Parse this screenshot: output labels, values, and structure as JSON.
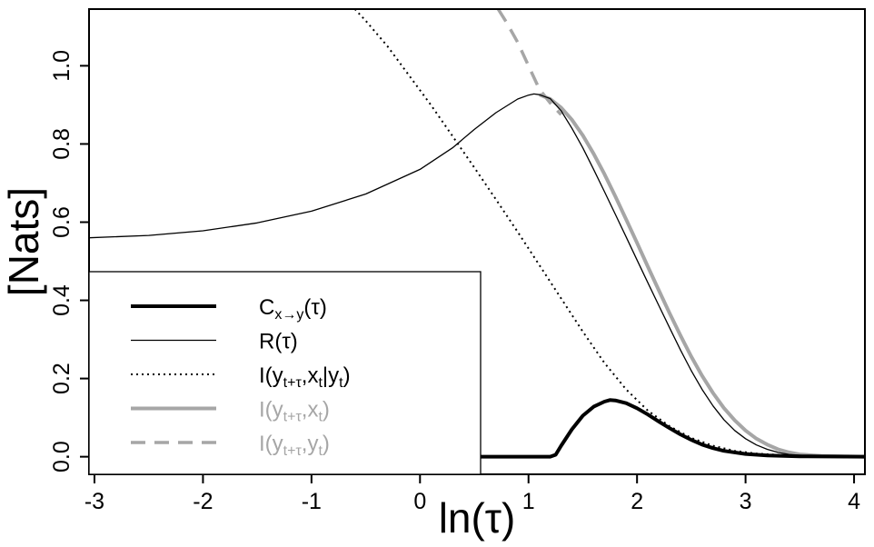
{
  "chart_data": {
    "type": "line",
    "xlabel": "ln(τ)",
    "ylabel": "[Nats]",
    "xlim": [
      -3.05,
      4.1
    ],
    "ylim": [
      -0.045,
      1.145
    ],
    "xticks": [
      {
        "value": -3,
        "label": "-3"
      },
      {
        "value": -2,
        "label": "-2"
      },
      {
        "value": -1,
        "label": "-1"
      },
      {
        "value": 0,
        "label": "0"
      },
      {
        "value": 1,
        "label": "1"
      },
      {
        "value": 2,
        "label": "2"
      },
      {
        "value": 3,
        "label": "3"
      },
      {
        "value": 4,
        "label": "4"
      }
    ],
    "yticks": [
      {
        "value": 0.0,
        "label": "0.0"
      },
      {
        "value": 0.2,
        "label": "0.2"
      },
      {
        "value": 0.4,
        "label": "0.4"
      },
      {
        "value": 0.6,
        "label": "0.6"
      },
      {
        "value": 0.8,
        "label": "0.8"
      },
      {
        "value": 1.0,
        "label": "1.0"
      }
    ],
    "grid": false,
    "legend_position": "bottom-left",
    "series": [
      {
        "name": "C",
        "color": "#000000",
        "style": "solid-thick",
        "points": [
          [
            -3.05,
            0
          ],
          [
            1.2,
            0
          ],
          [
            1.25,
            0.005
          ],
          [
            1.3,
            0.028
          ],
          [
            1.4,
            0.07
          ],
          [
            1.5,
            0.105
          ],
          [
            1.6,
            0.128
          ],
          [
            1.7,
            0.141
          ],
          [
            1.75,
            0.145
          ],
          [
            1.8,
            0.144
          ],
          [
            1.9,
            0.137
          ],
          [
            2.0,
            0.124
          ],
          [
            2.1,
            0.108
          ],
          [
            2.2,
            0.09
          ],
          [
            2.3,
            0.073
          ],
          [
            2.4,
            0.057
          ],
          [
            2.5,
            0.043
          ],
          [
            2.6,
            0.031
          ],
          [
            2.7,
            0.022
          ],
          [
            2.8,
            0.015
          ],
          [
            3.0,
            0.007
          ],
          [
            3.2,
            0.003
          ],
          [
            3.5,
            0.001
          ],
          [
            4.1,
            0
          ]
        ]
      },
      {
        "name": "R",
        "color": "#000000",
        "style": "solid-thin",
        "points": [
          [
            -3.05,
            0.56
          ],
          [
            -2.5,
            0.566
          ],
          [
            -2,
            0.578
          ],
          [
            -1.5,
            0.598
          ],
          [
            -1,
            0.628
          ],
          [
            -0.5,
            0.672
          ],
          [
            0,
            0.735
          ],
          [
            0.3,
            0.79
          ],
          [
            0.5,
            0.837
          ],
          [
            0.7,
            0.88
          ],
          [
            0.9,
            0.915
          ],
          [
            1.0,
            0.925
          ],
          [
            1.05,
            0.928
          ],
          [
            1.1,
            0.926
          ],
          [
            1.2,
            0.916
          ],
          [
            1.3,
            0.885
          ],
          [
            1.4,
            0.84
          ],
          [
            1.5,
            0.79
          ],
          [
            1.6,
            0.735
          ],
          [
            1.7,
            0.678
          ],
          [
            1.8,
            0.62
          ],
          [
            1.9,
            0.562
          ],
          [
            2.0,
            0.503
          ],
          [
            2.1,
            0.445
          ],
          [
            2.2,
            0.387
          ],
          [
            2.3,
            0.33
          ],
          [
            2.4,
            0.273
          ],
          [
            2.5,
            0.22
          ],
          [
            2.6,
            0.172
          ],
          [
            2.7,
            0.13
          ],
          [
            2.8,
            0.095
          ],
          [
            2.9,
            0.067
          ],
          [
            3.0,
            0.046
          ],
          [
            3.1,
            0.03
          ],
          [
            3.2,
            0.019
          ],
          [
            3.3,
            0.011
          ],
          [
            3.4,
            0.006
          ],
          [
            3.6,
            0.002
          ],
          [
            4.1,
            0
          ]
        ]
      },
      {
        "name": "I(y,x|y)",
        "color": "#000000",
        "style": "dotted",
        "points": [
          [
            -0.6,
            1.145
          ],
          [
            -0.5,
            1.115
          ],
          [
            -0.3,
            1.05
          ],
          [
            -0.1,
            0.975
          ],
          [
            0.1,
            0.9
          ],
          [
            0.3,
            0.82
          ],
          [
            0.5,
            0.74
          ],
          [
            0.7,
            0.658
          ],
          [
            0.9,
            0.575
          ],
          [
            1.1,
            0.49
          ],
          [
            1.3,
            0.405
          ],
          [
            1.5,
            0.32
          ],
          [
            1.7,
            0.24
          ],
          [
            1.9,
            0.172
          ],
          [
            2.1,
            0.118
          ],
          [
            2.3,
            0.078
          ],
          [
            2.5,
            0.048
          ],
          [
            2.7,
            0.028
          ],
          [
            2.9,
            0.015
          ],
          [
            3.1,
            0.008
          ],
          [
            3.4,
            0.003
          ],
          [
            3.8,
            0.001
          ],
          [
            4.1,
            0
          ]
        ]
      },
      {
        "name": "I(y,x)",
        "color": "#a6a6a6",
        "style": "solid-thick",
        "points": [
          [
            1.1,
            0.926
          ],
          [
            1.2,
            0.915
          ],
          [
            1.3,
            0.893
          ],
          [
            1.4,
            0.862
          ],
          [
            1.5,
            0.822
          ],
          [
            1.6,
            0.775
          ],
          [
            1.7,
            0.723
          ],
          [
            1.8,
            0.666
          ],
          [
            1.9,
            0.607
          ],
          [
            2.0,
            0.547
          ],
          [
            2.1,
            0.486
          ],
          [
            2.2,
            0.426
          ],
          [
            2.3,
            0.367
          ],
          [
            2.4,
            0.31
          ],
          [
            2.5,
            0.256
          ],
          [
            2.6,
            0.207
          ],
          [
            2.7,
            0.163
          ],
          [
            2.8,
            0.125
          ],
          [
            2.9,
            0.093
          ],
          [
            3.0,
            0.067
          ],
          [
            3.1,
            0.046
          ],
          [
            3.2,
            0.031
          ],
          [
            3.3,
            0.019
          ],
          [
            3.4,
            0.011
          ],
          [
            3.5,
            0.006
          ],
          [
            3.7,
            0.002
          ],
          [
            4.1,
            0
          ]
        ]
      },
      {
        "name": "I(y,y)",
        "color": "#a6a6a6",
        "style": "dashed",
        "points": [
          [
            0.72,
            1.145
          ],
          [
            0.8,
            1.11
          ],
          [
            0.9,
            1.06
          ],
          [
            1.0,
            1.0
          ],
          [
            1.1,
            0.94
          ],
          [
            1.2,
            0.905
          ],
          [
            1.3,
            0.875
          ]
        ]
      }
    ],
    "legend": [
      {
        "label": "Cx→y(τ)",
        "base": "C",
        "sub": "x→y",
        "tail": "(τ)",
        "color": "#000000",
        "style": "solid-thick"
      },
      {
        "label": "R(τ)",
        "base": "R(τ)",
        "sub": "",
        "tail": "",
        "color": "#000000",
        "style": "solid-thin"
      },
      {
        "label": "I(yt+τ,xt|yt)",
        "parts": [
          [
            "I(y",
            ""
          ],
          [
            "t+τ",
            "sub"
          ],
          [
            ",x",
            ""
          ],
          [
            "t",
            "sub"
          ],
          [
            "|y",
            ""
          ],
          [
            "t",
            "sub"
          ],
          [
            ")",
            ""
          ]
        ],
        "color": "#000000",
        "style": "dotted"
      },
      {
        "label": "I(yt+τ,xt)",
        "parts": [
          [
            "I(y",
            ""
          ],
          [
            "t+τ",
            "sub"
          ],
          [
            ",x",
            ""
          ],
          [
            "t",
            "sub"
          ],
          [
            ")",
            ""
          ]
        ],
        "color": "#a6a6a6",
        "style": "solid-thick"
      },
      {
        "label": "I(yt+τ,yt)",
        "parts": [
          [
            "I(y",
            ""
          ],
          [
            "t+τ",
            "sub"
          ],
          [
            ",y",
            ""
          ],
          [
            "t",
            "sub"
          ],
          [
            ")",
            ""
          ]
        ],
        "color": "#a6a6a6",
        "style": "dashed"
      }
    ]
  }
}
